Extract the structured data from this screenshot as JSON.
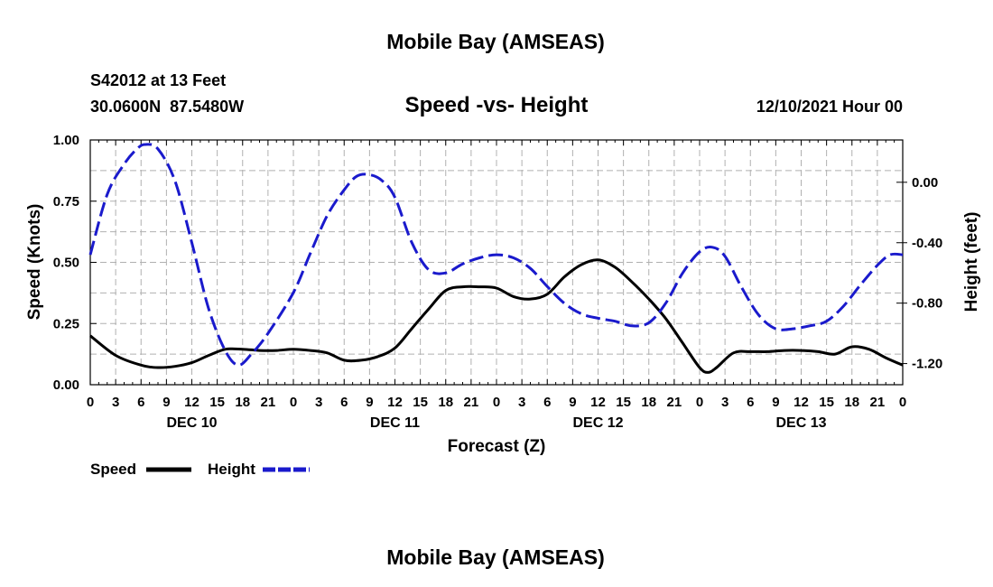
{
  "page_title_top": "Mobile Bay (AMSEAS)",
  "page_title_bottom": "Mobile Bay (AMSEAS)",
  "station": {
    "id_line": "S42012 at 13 Feet",
    "coords_line": "30.0600N  87.5480W"
  },
  "datetime": "12/10/2021 Hour 00",
  "colors": {
    "speed": "#000000",
    "height": "#1a1acc",
    "grid": "#b0b0b0"
  },
  "chart_data": {
    "type": "line",
    "title": "Speed -vs- Height",
    "xlabel": "Forecast (Z)",
    "ylabel": "Speed (Knots)",
    "ylabel_right": "Height (feet)",
    "x_range_hours": [
      0,
      96
    ],
    "ylim": [
      0,
      1.0
    ],
    "ylim_right": [
      -1.34,
      0.28
    ],
    "y_ticks": [
      "0.00",
      "0.25",
      "0.50",
      "0.75",
      "1.00"
    ],
    "y_tick_values": [
      0,
      0.25,
      0.5,
      0.75,
      1.0
    ],
    "y_right_ticks": [
      "0.00",
      "-0.40",
      "-0.80",
      "-1.20"
    ],
    "y_right_tick_values": [
      0,
      -0.4,
      -0.8,
      -1.2
    ],
    "x_tick_labels": [
      "0",
      "3",
      "6",
      "9",
      "12",
      "15",
      "18",
      "21",
      "0",
      "3",
      "6",
      "9",
      "12",
      "15",
      "18",
      "21",
      "0",
      "3",
      "6",
      "9",
      "12",
      "15",
      "18",
      "21",
      "0",
      "3",
      "6",
      "9",
      "12",
      "15",
      "18",
      "21",
      "0"
    ],
    "x_tick_hours": [
      0,
      3,
      6,
      9,
      12,
      15,
      18,
      21,
      24,
      27,
      30,
      33,
      36,
      39,
      42,
      45,
      48,
      51,
      54,
      57,
      60,
      63,
      66,
      69,
      72,
      75,
      78,
      81,
      84,
      87,
      90,
      93,
      96
    ],
    "day_labels": [
      "DEC 10",
      "DEC 11",
      "DEC 12",
      "DEC 13"
    ],
    "day_label_hours": [
      12,
      36,
      60,
      84
    ],
    "legend": [
      {
        "name": "Speed",
        "style": "solid"
      },
      {
        "name": "Height",
        "style": "dashed"
      }
    ],
    "series": [
      {
        "name": "Speed",
        "axis": "left",
        "x": [
          0,
          3,
          6,
          8,
          10,
          12,
          14,
          16,
          18,
          20,
          22,
          24,
          26,
          28,
          30,
          32,
          34,
          36,
          38,
          40,
          42,
          44,
          46,
          48,
          50,
          52,
          54,
          56,
          58,
          60,
          62,
          64,
          66,
          68,
          70,
          72,
          73,
          74,
          76,
          78,
          80,
          82,
          84,
          86,
          88,
          90,
          92,
          94,
          96
        ],
        "values": [
          0.2,
          0.12,
          0.08,
          0.07,
          0.075,
          0.09,
          0.12,
          0.145,
          0.145,
          0.14,
          0.14,
          0.145,
          0.14,
          0.13,
          0.1,
          0.1,
          0.115,
          0.15,
          0.23,
          0.31,
          0.385,
          0.4,
          0.4,
          0.395,
          0.36,
          0.35,
          0.37,
          0.44,
          0.49,
          0.51,
          0.48,
          0.42,
          0.35,
          0.27,
          0.17,
          0.07,
          0.05,
          0.07,
          0.13,
          0.135,
          0.135,
          0.14,
          0.14,
          0.135,
          0.125,
          0.155,
          0.145,
          0.11,
          0.08
        ]
      },
      {
        "name": "Height",
        "axis": "right",
        "x": [
          0,
          2,
          4,
          5.5,
          6.5,
          8,
          10,
          12,
          14,
          16,
          17.5,
          19,
          21,
          24,
          26,
          28,
          30,
          31.5,
          33,
          34.5,
          36,
          38,
          40,
          42,
          44,
          46,
          48,
          50,
          52,
          54,
          56,
          58,
          60,
          62,
          64,
          66,
          68,
          70,
          72,
          73.5,
          75,
          77,
          79,
          81,
          83,
          85,
          87,
          89,
          91,
          93,
          94.5,
          96
        ],
        "values": [
          -0.48,
          -0.08,
          0.12,
          0.22,
          0.25,
          0.22,
          0.01,
          -0.4,
          -0.84,
          -1.12,
          -1.21,
          -1.14,
          -1.0,
          -0.73,
          -0.47,
          -0.22,
          -0.05,
          0.04,
          0.05,
          0.01,
          -0.1,
          -0.4,
          -0.58,
          -0.6,
          -0.54,
          -0.5,
          -0.48,
          -0.5,
          -0.57,
          -0.69,
          -0.8,
          -0.87,
          -0.9,
          -0.92,
          -0.95,
          -0.93,
          -0.8,
          -0.6,
          -0.46,
          -0.43,
          -0.49,
          -0.7,
          -0.88,
          -0.97,
          -0.97,
          -0.95,
          -0.92,
          -0.82,
          -0.68,
          -0.55,
          -0.48,
          -0.48
        ]
      }
    ]
  }
}
